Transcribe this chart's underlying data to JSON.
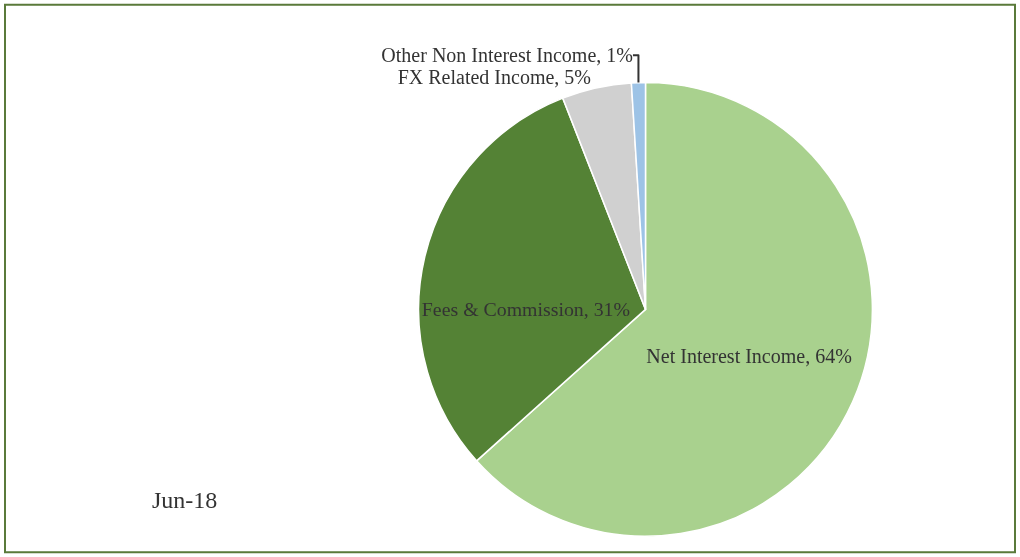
{
  "chart_data": {
    "type": "pie",
    "categories": [
      "Net Interest Income",
      "Fees & Commission",
      "FX Related Income",
      "Other Non Interest Income"
    ],
    "values": [
      64,
      31,
      5,
      1
    ],
    "colors": [
      "#a9d18e",
      "#548235",
      "#d0d0d0",
      "#9dc3e6"
    ],
    "value_labels": [
      "64%",
      "31%",
      "5%",
      "1%"
    ],
    "annotations": [
      "Jun-18"
    ],
    "legend": false
  }
}
